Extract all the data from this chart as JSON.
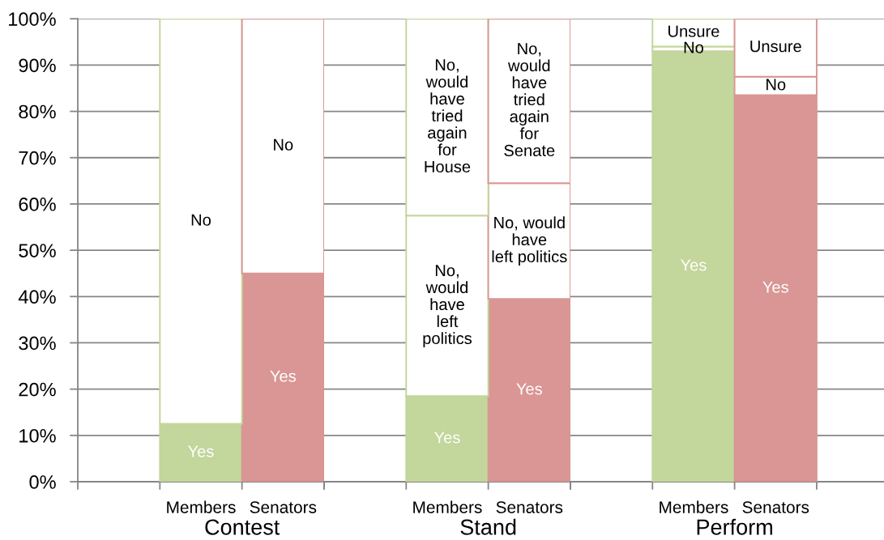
{
  "chart_data": [
    {
      "type": "bar",
      "stacked": true,
      "xlabel": "Contest",
      "categories": [
        "Members",
        "Senators"
      ],
      "ylim": [
        0,
        100
      ],
      "yticks": [
        {
          "value": 0,
          "label": "0%"
        },
        {
          "value": 10,
          "label": "10%"
        },
        {
          "value": 20,
          "label": "20%"
        },
        {
          "value": 30,
          "label": "30%"
        },
        {
          "value": 40,
          "label": "40%"
        },
        {
          "value": 50,
          "label": "50%"
        },
        {
          "value": 60,
          "label": "60%"
        },
        {
          "value": 70,
          "label": "70%"
        },
        {
          "value": 80,
          "label": "80%"
        },
        {
          "value": 90,
          "label": "90%"
        },
        {
          "value": 100,
          "label": "100%"
        }
      ],
      "grid": "y",
      "series": [
        {
          "colors": [
            "#c3d69b",
            "#d99694"
          ],
          "values": [
            12.5,
            45
          ],
          "value_labels": [
            "Yes",
            "Yes"
          ]
        },
        {
          "colors": [
            "#ffffff",
            "#ffffff"
          ],
          "values": [
            87.5,
            55
          ],
          "value_labels": [
            "No",
            "No"
          ]
        }
      ]
    },
    {
      "type": "bar",
      "stacked": true,
      "xlabel": "Stand",
      "categories": [
        "Members",
        "Senators"
      ],
      "ylim": [
        0,
        100
      ],
      "yticks": [
        {
          "value": 0,
          "label": null
        },
        {
          "value": 10,
          "label": null
        },
        {
          "value": 20,
          "label": null
        },
        {
          "value": 30,
          "label": null
        },
        {
          "value": 40,
          "label": null
        },
        {
          "value": 50,
          "label": null
        },
        {
          "value": 60,
          "label": null
        },
        {
          "value": 70,
          "label": null
        },
        {
          "value": 80,
          "label": null
        },
        {
          "value": 90,
          "label": null
        },
        {
          "value": 100,
          "label": null
        }
      ],
      "grid": "y",
      "tick_labels": "x",
      "series": [
        {
          "colors": [
            "#c3d69b",
            "#d99694"
          ],
          "values": [
            18.5,
            39.5
          ],
          "value_labels": [
            "Yes",
            "Yes"
          ]
        },
        {
          "colors": [
            "#ffffff",
            "#ffffff"
          ],
          "values": [
            39,
            25
          ],
          "value_labels": [
            "No,\nwould\nhave\nleft\npolitics",
            "No, would\nhave\nleft politics"
          ]
        },
        {
          "colors": [
            "#ffffff",
            "#ffffff"
          ],
          "values": [
            42.5,
            35.5
          ],
          "value_labels": [
            "No,\nwould\nhave\ntried\nagain\nfor\nHouse",
            "No,\nwould\nhave\ntried\nagain\nfor\nSenate"
          ]
        }
      ]
    },
    {
      "type": "bar",
      "stacked": true,
      "xlabel": "Perform",
      "categories": [
        "Members",
        "Senators"
      ],
      "ylim": [
        0,
        100
      ],
      "yticks": [
        {
          "value": 0,
          "label": null
        },
        {
          "value": 10,
          "label": null
        },
        {
          "value": 20,
          "label": null
        },
        {
          "value": 30,
          "label": null
        },
        {
          "value": 40,
          "label": null
        },
        {
          "value": 50,
          "label": null
        },
        {
          "value": 60,
          "label": null
        },
        {
          "value": 70,
          "label": null
        },
        {
          "value": 80,
          "label": null
        },
        {
          "value": 90,
          "label": null
        },
        {
          "value": 100,
          "label": null
        }
      ],
      "grid": "y",
      "tick_labels": "x",
      "series": [
        {
          "colors": [
            "#c3d69b",
            "#d99694"
          ],
          "values": [
            93,
            83.5
          ],
          "value_labels": [
            "Yes",
            "Yes"
          ]
        },
        {
          "colors": [
            "#ffffff",
            "#ffffff"
          ],
          "values": [
            1,
            4
          ],
          "value_labels": [
            "No",
            "No"
          ]
        },
        {
          "colors": [
            "#ffffff",
            "#ffffff"
          ],
          "values": [
            6,
            12.5
          ],
          "value_labels": [
            "Unsure",
            "Unsure"
          ]
        }
      ]
    }
  ]
}
